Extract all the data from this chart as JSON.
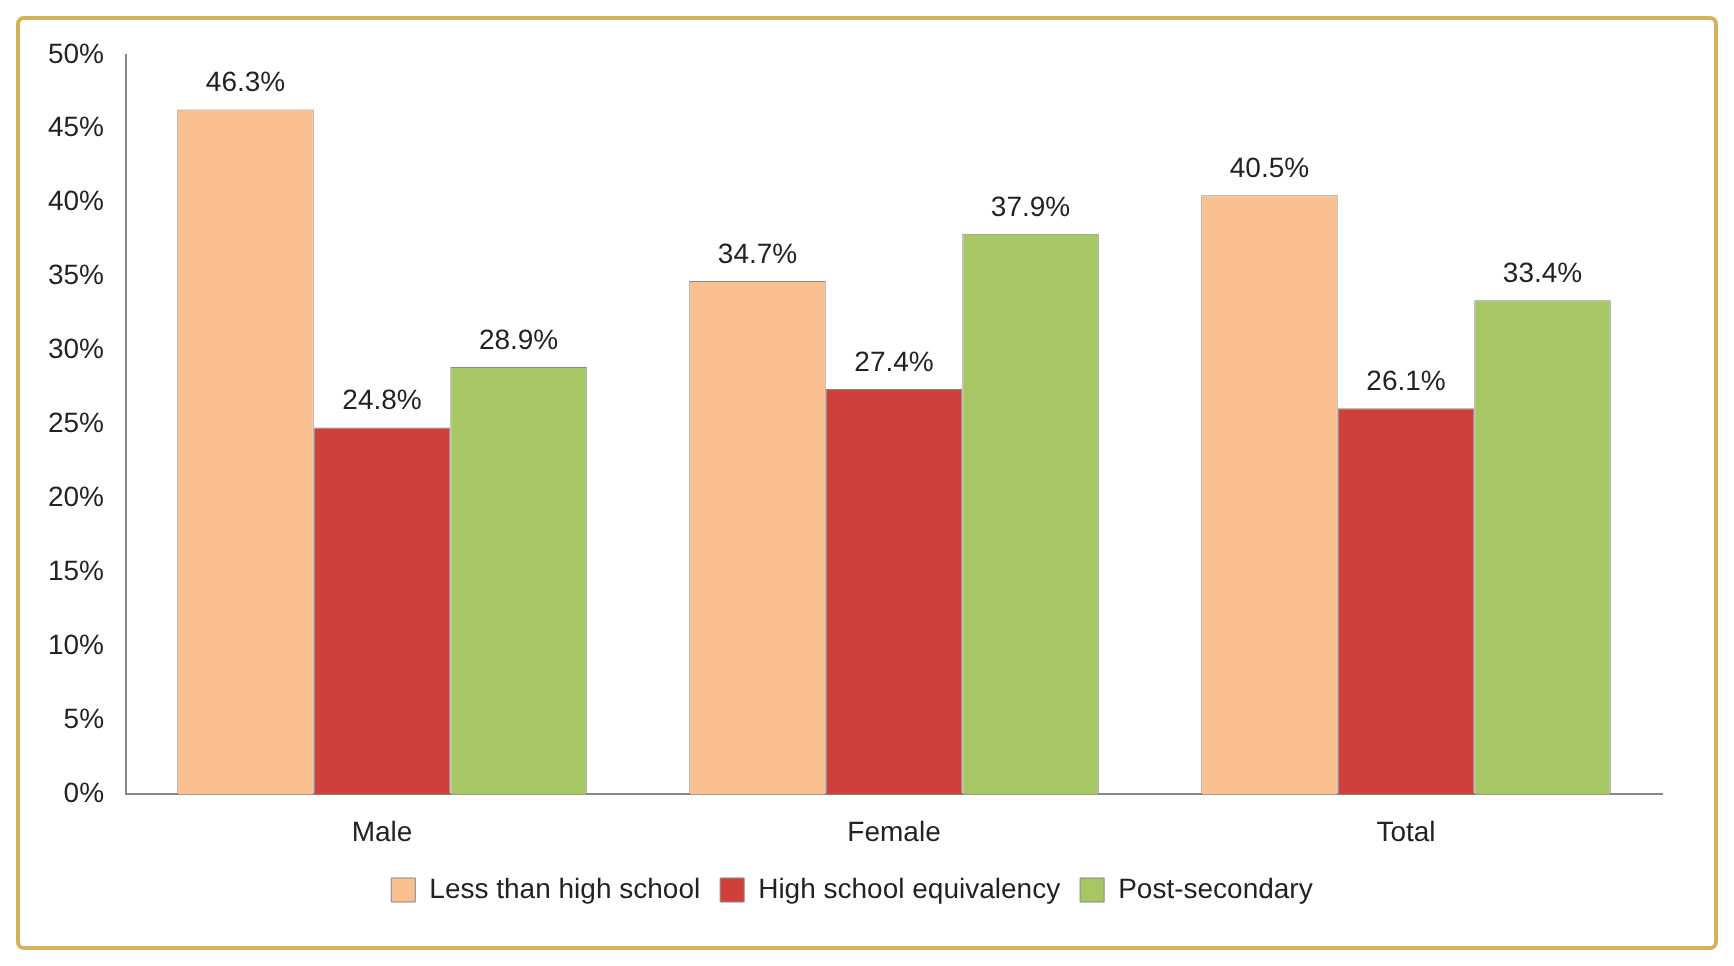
{
  "chart_data": {
    "type": "bar",
    "categories": [
      "Male",
      "Female",
      "Total"
    ],
    "series": [
      {
        "name": "Less than high school",
        "color": "#fac08f",
        "values": [
          46.3,
          34.7,
          40.5
        ],
        "value_labels": [
          "46.3%",
          "34.7%",
          "40.5%"
        ]
      },
      {
        "name": "High school equivalency",
        "color": "#d0403a",
        "values": [
          24.8,
          27.4,
          26.1
        ],
        "value_labels": [
          "24.8%",
          "27.4%",
          "26.1%"
        ]
      },
      {
        "name": "Post-secondary",
        "color": "#a6c763",
        "values": [
          28.9,
          37.9,
          33.4
        ],
        "value_labels": [
          "28.9%",
          "37.9%",
          "33.4%"
        ]
      }
    ],
    "ylim": [
      0,
      50
    ],
    "yticks": [
      {
        "value": 0,
        "label": "0%"
      },
      {
        "value": 5,
        "label": "5%"
      },
      {
        "value": 10,
        "label": "10%"
      },
      {
        "value": 15,
        "label": "15%"
      },
      {
        "value": 20,
        "label": "20%"
      },
      {
        "value": 25,
        "label": "25%"
      },
      {
        "value": 30,
        "label": "30%"
      },
      {
        "value": 35,
        "label": "35%"
      },
      {
        "value": 40,
        "label": "40%"
      },
      {
        "value": 45,
        "label": "45%"
      },
      {
        "value": 50,
        "label": "50%"
      }
    ],
    "grid": false,
    "legend": "bottom"
  }
}
